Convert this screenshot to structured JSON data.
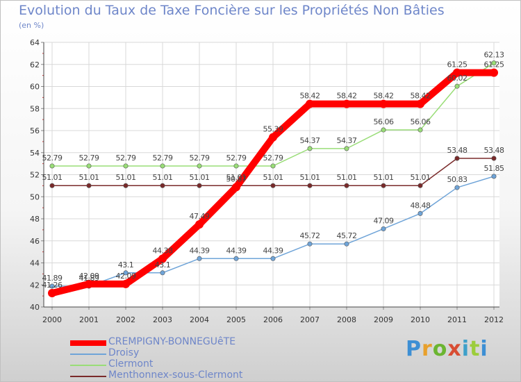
{
  "title": "Evolution du Taux de Taxe Foncière sur les Propriétés Non Bâties",
  "unit_label": "(en %)",
  "brand": {
    "parts": [
      "P",
      "r",
      "o",
      "x",
      "i",
      "t",
      "i"
    ]
  },
  "chart_data": {
    "type": "line",
    "title": "Evolution du Taux de Taxe Foncière sur les Propriétés Non Bâties",
    "ylabel": "(en %)",
    "xlabel": "",
    "ylim": [
      40,
      64
    ],
    "yticks": [
      40,
      42,
      44,
      46,
      48,
      50,
      52,
      54,
      56,
      58,
      60,
      62,
      64
    ],
    "x": [
      "2000",
      "2001",
      "2002",
      "2003",
      "2004",
      "2005",
      "2006",
      "2007",
      "2008",
      "2009",
      "2010",
      "2011",
      "2012"
    ],
    "series": [
      {
        "name": "CREMPIGNY-BONNEGUêTE",
        "color": "#ff0000",
        "values": [
          41.26,
          42.09,
          42.09,
          44.38,
          47.49,
          50.87,
          55.39,
          58.42,
          58.42,
          58.42,
          58.42,
          61.25,
          61.25
        ],
        "labels": [
          "41.26",
          "42.09",
          "42.09",
          "44.38",
          "47.49",
          "50.87",
          "55.39",
          "58.42",
          "58.42",
          "58.42",
          "58.42",
          "61.25",
          "61.25"
        ]
      },
      {
        "name": "Droisy",
        "color": "#6fa4d8",
        "values": [
          41.89,
          41.89,
          43.1,
          43.1,
          44.39,
          44.39,
          44.39,
          45.72,
          45.72,
          47.09,
          48.48,
          50.83,
          51.85
        ],
        "labels": [
          "41.89",
          "41.89",
          "43.1",
          "43.1",
          "44.39",
          "44.39",
          "44.39",
          "45.72",
          "45.72",
          "47.09",
          "48.48",
          "50.83",
          "51.85"
        ]
      },
      {
        "name": "Clermont",
        "color": "#99dd77",
        "values": [
          52.79,
          52.79,
          52.79,
          52.79,
          52.79,
          52.79,
          52.79,
          54.37,
          54.37,
          56.06,
          56.06,
          60.02,
          62.13
        ],
        "labels": [
          "52.79",
          "52.79",
          "52.79",
          "52.79",
          "52.79",
          "52.79",
          "52.79",
          "54.37",
          "54.37",
          "56.06",
          "56.06",
          "60.02",
          "62.13"
        ]
      },
      {
        "name": "Menthonnex-sous-Clermont",
        "color": "#7a2a2a",
        "values": [
          51.01,
          51.01,
          51.01,
          51.01,
          51.01,
          51.01,
          51.01,
          51.01,
          51.01,
          51.01,
          51.01,
          53.48,
          53.48
        ],
        "labels": [
          "51.01",
          "51.01",
          "51.01",
          "51.01",
          "51.01",
          "51.01",
          "51.01",
          "51.01",
          "51.01",
          "51.01",
          "51.01",
          "53.48",
          "53.48"
        ]
      }
    ]
  }
}
